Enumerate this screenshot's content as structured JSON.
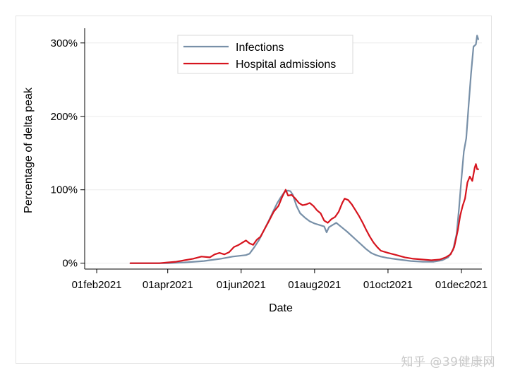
{
  "chart_data": {
    "type": "line",
    "title": "",
    "xlabel": "Date",
    "ylabel": "Percentage of delta peak",
    "x_ticks": [
      "01feb2021",
      "01apr2021",
      "01jun2021",
      "01aug2021",
      "01oct2021",
      "01dec2021"
    ],
    "y_ticks": [
      "0%",
      "100%",
      "200%",
      "300%"
    ],
    "xlim": [
      "2021-01-22",
      "2021-12-18"
    ],
    "ylim": [
      -8,
      320
    ],
    "grid": "horizontal",
    "legend_position": "top-center",
    "series": [
      {
        "name": "Infections",
        "color": "#7890a8",
        "points": [
          [
            "2021-03-01",
            0
          ],
          [
            "2021-03-15",
            0
          ],
          [
            "2021-04-01",
            0
          ],
          [
            "2021-04-15",
            1
          ],
          [
            "2021-05-01",
            3
          ],
          [
            "2021-05-15",
            6
          ],
          [
            "2021-05-25",
            9
          ],
          [
            "2021-06-05",
            11
          ],
          [
            "2021-06-08",
            13
          ],
          [
            "2021-06-12",
            22
          ],
          [
            "2021-06-16",
            32
          ],
          [
            "2021-06-20",
            45
          ],
          [
            "2021-06-24",
            58
          ],
          [
            "2021-06-28",
            72
          ],
          [
            "2021-07-01",
            82
          ],
          [
            "2021-07-04",
            90
          ],
          [
            "2021-07-07",
            97
          ],
          [
            "2021-07-10",
            99
          ],
          [
            "2021-07-12",
            98
          ],
          [
            "2021-07-14",
            93
          ],
          [
            "2021-07-17",
            78
          ],
          [
            "2021-07-20",
            68
          ],
          [
            "2021-07-24",
            62
          ],
          [
            "2021-07-28",
            57
          ],
          [
            "2021-08-01",
            54
          ],
          [
            "2021-08-05",
            52
          ],
          [
            "2021-08-09",
            50
          ],
          [
            "2021-08-11",
            42
          ],
          [
            "2021-08-13",
            49
          ],
          [
            "2021-08-16",
            52
          ],
          [
            "2021-08-19",
            55
          ],
          [
            "2021-08-22",
            51
          ],
          [
            "2021-08-25",
            47
          ],
          [
            "2021-08-28",
            43
          ],
          [
            "2021-09-01",
            37
          ],
          [
            "2021-09-05",
            31
          ],
          [
            "2021-09-09",
            25
          ],
          [
            "2021-09-13",
            19
          ],
          [
            "2021-09-17",
            14
          ],
          [
            "2021-09-21",
            11
          ],
          [
            "2021-09-25",
            9
          ],
          [
            "2021-10-01",
            7
          ],
          [
            "2021-10-10",
            5
          ],
          [
            "2021-10-20",
            3
          ],
          [
            "2021-10-30",
            2
          ],
          [
            "2021-11-08",
            2
          ],
          [
            "2021-11-15",
            4
          ],
          [
            "2021-11-20",
            8
          ],
          [
            "2021-11-24",
            18
          ],
          [
            "2021-11-27",
            40
          ],
          [
            "2021-11-29",
            75
          ],
          [
            "2021-12-01",
            115
          ],
          [
            "2021-12-03",
            152
          ],
          [
            "2021-12-05",
            170
          ],
          [
            "2021-12-07",
            215
          ],
          [
            "2021-12-09",
            258
          ],
          [
            "2021-12-11",
            295
          ],
          [
            "2021-12-13",
            298
          ],
          [
            "2021-12-14",
            310
          ],
          [
            "2021-12-15",
            305
          ]
        ]
      },
      {
        "name": "Hospital admissions",
        "color": "#d6141e",
        "points": [
          [
            "2021-03-01",
            0
          ],
          [
            "2021-03-15",
            0
          ],
          [
            "2021-03-25",
            0
          ],
          [
            "2021-04-01",
            1
          ],
          [
            "2021-04-08",
            2
          ],
          [
            "2021-04-15",
            4
          ],
          [
            "2021-04-22",
            6
          ],
          [
            "2021-04-29",
            9
          ],
          [
            "2021-05-06",
            8
          ],
          [
            "2021-05-10",
            12
          ],
          [
            "2021-05-14",
            14
          ],
          [
            "2021-05-18",
            12
          ],
          [
            "2021-05-22",
            15
          ],
          [
            "2021-05-26",
            22
          ],
          [
            "2021-05-30",
            25
          ],
          [
            "2021-06-02",
            28
          ],
          [
            "2021-06-05",
            31
          ],
          [
            "2021-06-08",
            27
          ],
          [
            "2021-06-11",
            25
          ],
          [
            "2021-06-14",
            32
          ],
          [
            "2021-06-17",
            36
          ],
          [
            "2021-06-20",
            45
          ],
          [
            "2021-06-24",
            57
          ],
          [
            "2021-06-28",
            70
          ],
          [
            "2021-07-02",
            78
          ],
          [
            "2021-07-05",
            90
          ],
          [
            "2021-07-08",
            100
          ],
          [
            "2021-07-10",
            92
          ],
          [
            "2021-07-13",
            93
          ],
          [
            "2021-07-16",
            88
          ],
          [
            "2021-07-19",
            82
          ],
          [
            "2021-07-22",
            79
          ],
          [
            "2021-07-25",
            80
          ],
          [
            "2021-07-28",
            82
          ],
          [
            "2021-07-31",
            78
          ],
          [
            "2021-08-03",
            72
          ],
          [
            "2021-08-06",
            68
          ],
          [
            "2021-08-09",
            58
          ],
          [
            "2021-08-12",
            55
          ],
          [
            "2021-08-15",
            60
          ],
          [
            "2021-08-18",
            63
          ],
          [
            "2021-08-21",
            70
          ],
          [
            "2021-08-24",
            82
          ],
          [
            "2021-08-26",
            88
          ],
          [
            "2021-08-29",
            86
          ],
          [
            "2021-09-01",
            80
          ],
          [
            "2021-09-04",
            72
          ],
          [
            "2021-09-07",
            64
          ],
          [
            "2021-09-10",
            55
          ],
          [
            "2021-09-13",
            45
          ],
          [
            "2021-09-16",
            36
          ],
          [
            "2021-09-19",
            28
          ],
          [
            "2021-09-22",
            22
          ],
          [
            "2021-09-25",
            17
          ],
          [
            "2021-10-01",
            14
          ],
          [
            "2021-10-08",
            11
          ],
          [
            "2021-10-15",
            8
          ],
          [
            "2021-10-22",
            6
          ],
          [
            "2021-10-30",
            5
          ],
          [
            "2021-11-06",
            4
          ],
          [
            "2021-11-13",
            5
          ],
          [
            "2021-11-18",
            8
          ],
          [
            "2021-11-22",
            12
          ],
          [
            "2021-11-25",
            22
          ],
          [
            "2021-11-28",
            45
          ],
          [
            "2021-11-30",
            65
          ],
          [
            "2021-12-02",
            78
          ],
          [
            "2021-12-04",
            88
          ],
          [
            "2021-12-06",
            110
          ],
          [
            "2021-12-08",
            118
          ],
          [
            "2021-12-10",
            112
          ],
          [
            "2021-12-12",
            130
          ],
          [
            "2021-12-13",
            135
          ],
          [
            "2021-12-14",
            128
          ],
          [
            "2021-12-15",
            128
          ]
        ]
      }
    ]
  },
  "watermark": "知乎 @39健康网"
}
